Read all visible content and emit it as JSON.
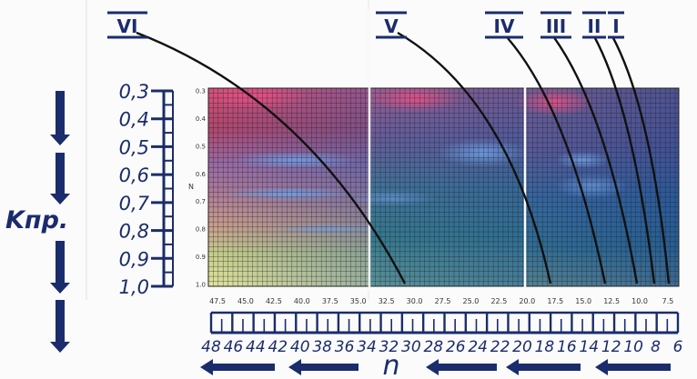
{
  "colors": {
    "ink": "#1b2c6c",
    "curve": "#111111",
    "grid": "#222222"
  },
  "left_axis": {
    "label": "Kпр.",
    "ticks": [
      "0,3",
      "0,4",
      "0,5",
      "0,6",
      "0,7",
      "0,8",
      "0,9",
      "1,0"
    ]
  },
  "bottom_axis": {
    "label": "n",
    "ticks": [
      "48",
      "46",
      "44",
      "42",
      "40",
      "38",
      "36",
      "34",
      "32",
      "30",
      "28",
      "26",
      "24",
      "22",
      "20",
      "18",
      "16",
      "14",
      "12",
      "10",
      "8",
      "6"
    ]
  },
  "plot": {
    "y_axis_letter": "N",
    "y_ticks": [
      "0.3",
      "0.4",
      "0.5",
      "0.6",
      "0.7",
      "0.8",
      "0.9",
      "1.0"
    ],
    "x_ticks": [
      "47.5",
      "45.0",
      "42.5",
      "40.0",
      "37.5",
      "35.0",
      "32.5",
      "30.0",
      "27.5",
      "25.0",
      "22.5",
      "20.0",
      "17.5",
      "15.0",
      "12.5",
      "10.0",
      "7.5"
    ]
  },
  "curves": [
    {
      "label": "VI"
    },
    {
      "label": "V"
    },
    {
      "label": "IV"
    },
    {
      "label": "III"
    },
    {
      "label": "II"
    },
    {
      "label": "I"
    }
  ]
}
